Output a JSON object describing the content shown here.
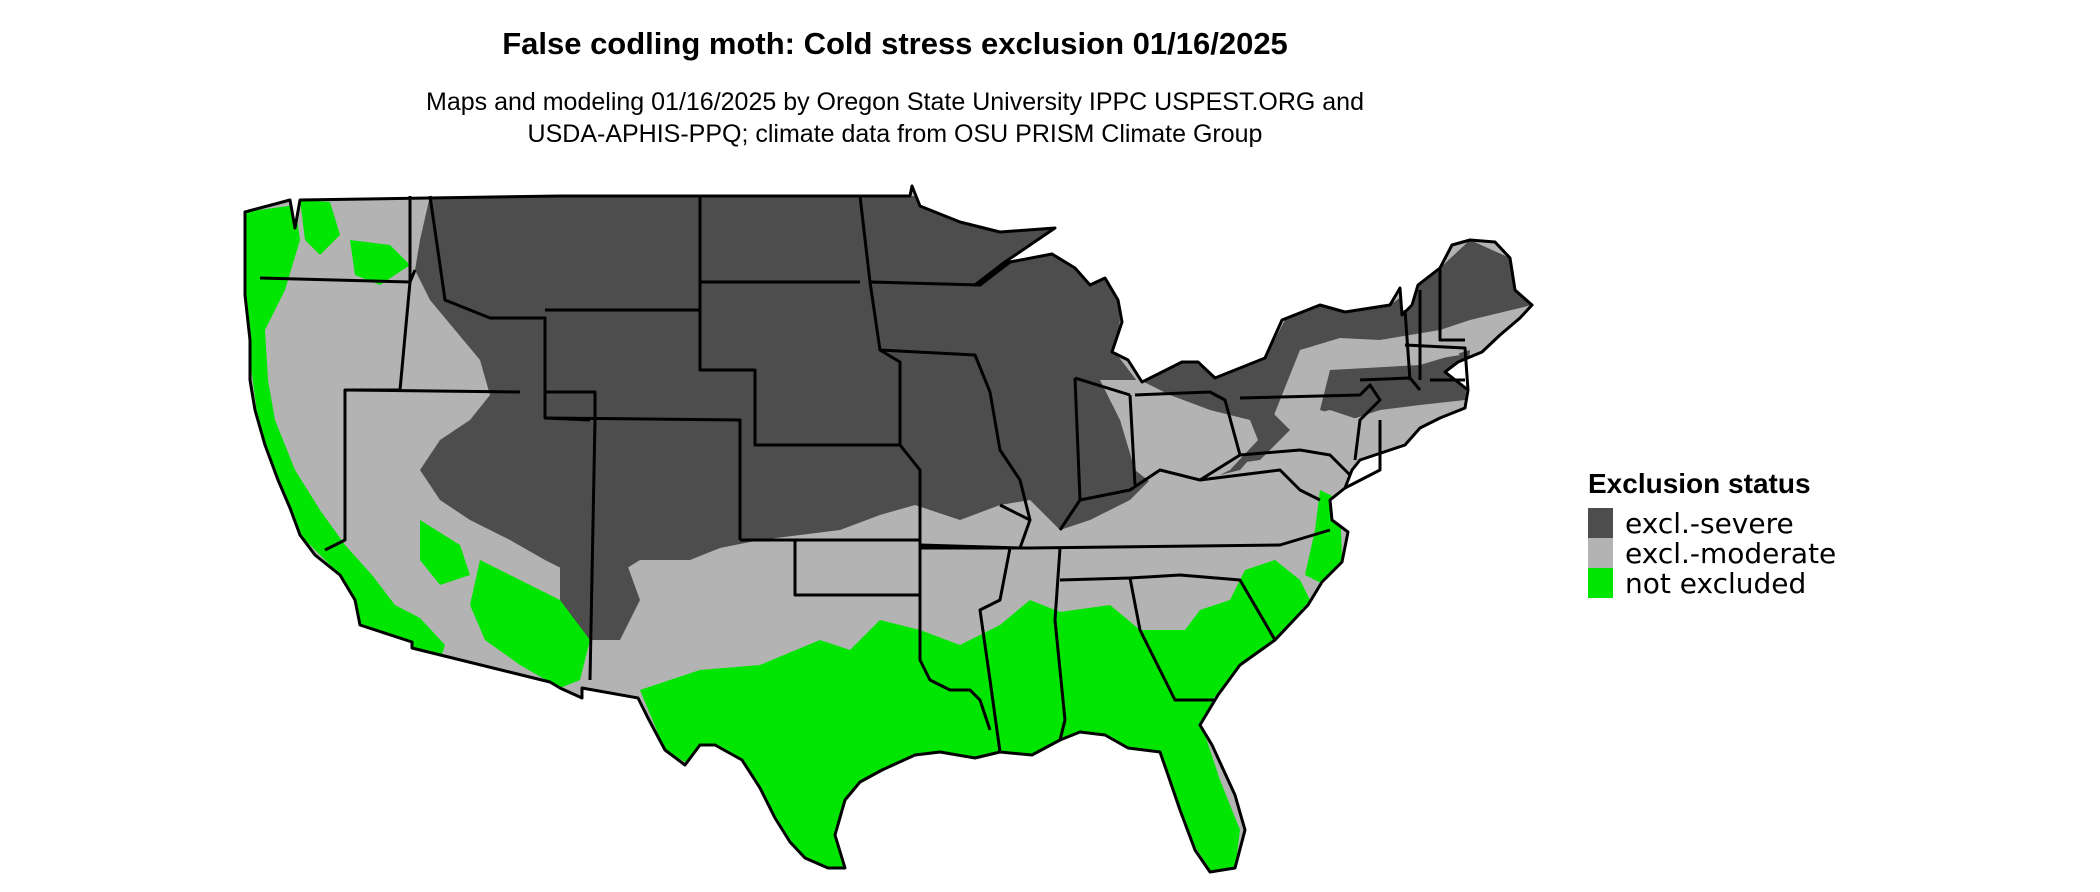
{
  "title": "False codling moth: Cold stress exclusion 01/16/2025",
  "subtitle_line1": "Maps and modeling 01/16/2025 by Oregon State University IPPC USPEST.ORG and",
  "subtitle_line2": "USDA-APHIS-PPQ; climate data from OSU PRISM Climate Group",
  "legend": {
    "title": "Exclusion status",
    "items": [
      {
        "label": "excl.-severe",
        "color": "#4d4d4d"
      },
      {
        "label": "excl.-moderate",
        "color": "#b3b3b3"
      },
      {
        "label": "not excluded",
        "color": "#00e600"
      }
    ]
  },
  "colors": {
    "severe": "#4d4d4d",
    "moderate": "#b3b3b3",
    "not_excluded": "#00e600",
    "border": "#000000"
  }
}
